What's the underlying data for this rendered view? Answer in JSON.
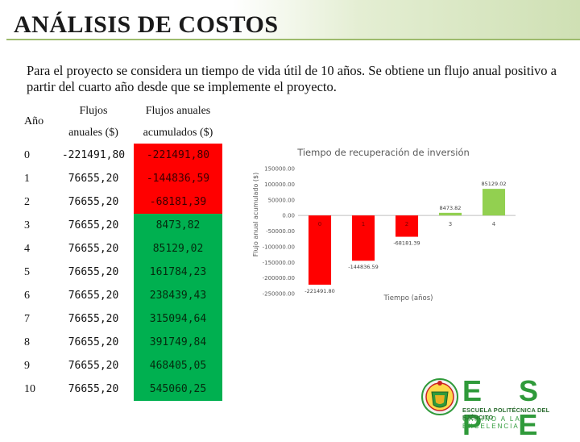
{
  "slide": {
    "title": "ANÁLISIS DE COSTOS",
    "intro": "Para el proyecto se considera un tiempo de vida útil de 10 años. Se obtiene un flujo anual positivo a partir del cuarto año desde que se implemente el proyecto."
  },
  "table": {
    "headers": {
      "year": "Año",
      "flows_line1": "Flujos",
      "flows_line2": "anuales ($)",
      "cumulative_line1": "Flujos anuales",
      "cumulative_line2": "acumulados ($)"
    },
    "rows": [
      {
        "year": "0",
        "flow": "-221491,80",
        "cumulative": "-221491,80",
        "status": "negative"
      },
      {
        "year": "1",
        "flow": "76655,20",
        "cumulative": "-144836,59",
        "status": "negative"
      },
      {
        "year": "2",
        "flow": "76655,20",
        "cumulative": "-68181,39",
        "status": "negative"
      },
      {
        "year": "3",
        "flow": "76655,20",
        "cumulative": "8473,82",
        "status": "positive"
      },
      {
        "year": "4",
        "flow": "76655,20",
        "cumulative": "85129,02",
        "status": "positive"
      },
      {
        "year": "5",
        "flow": "76655,20",
        "cumulative": "161784,23",
        "status": "positive"
      },
      {
        "year": "6",
        "flow": "76655,20",
        "cumulative": "238439,43",
        "status": "positive"
      },
      {
        "year": "7",
        "flow": "76655,20",
        "cumulative": "315094,64",
        "status": "positive"
      },
      {
        "year": "8",
        "flow": "76655,20",
        "cumulative": "391749,84",
        "status": "positive"
      },
      {
        "year": "9",
        "flow": "76655,20",
        "cumulative": "468405,05",
        "status": "positive"
      },
      {
        "year": "10",
        "flow": "76655,20",
        "cumulative": "545060,25",
        "status": "positive"
      }
    ],
    "colors": {
      "negative": "#ff0000",
      "positive": "#00b050"
    }
  },
  "chart_data": {
    "type": "bar",
    "title": "Tiempo de recuperación de inversión",
    "xlabel": "Tiempo (años)",
    "ylabel": "Flujo anual acumulado ($)",
    "categories": [
      "0",
      "1",
      "2",
      "3",
      "4"
    ],
    "values": [
      -221491.8,
      -144836.59,
      -68181.39,
      8473.82,
      85129.02
    ],
    "data_labels": [
      "-221491.80",
      "-144836.59",
      "-68181.39",
      "8473.82",
      "85129.02"
    ],
    "ylim": [
      -250000,
      150000
    ],
    "yticks": [
      150000,
      100000,
      50000,
      0,
      -50000,
      -100000,
      -150000,
      -200000,
      -250000
    ],
    "ytick_labels": [
      "150000.00",
      "100000.00",
      "50000.00",
      "0.00",
      "-50000.00",
      "-100000.00",
      "-150000.00",
      "-200000.00",
      "-250000.00"
    ],
    "colors": {
      "negative": "#ff0000",
      "positive": "#92d050"
    },
    "grid": false,
    "legend": "none"
  },
  "logo": {
    "name": "E S P E",
    "line1": "ESCUELA POLITÉCNICA DEL EJÉRCITO",
    "line2": "CAMINO A LA EXCELENCIA"
  }
}
